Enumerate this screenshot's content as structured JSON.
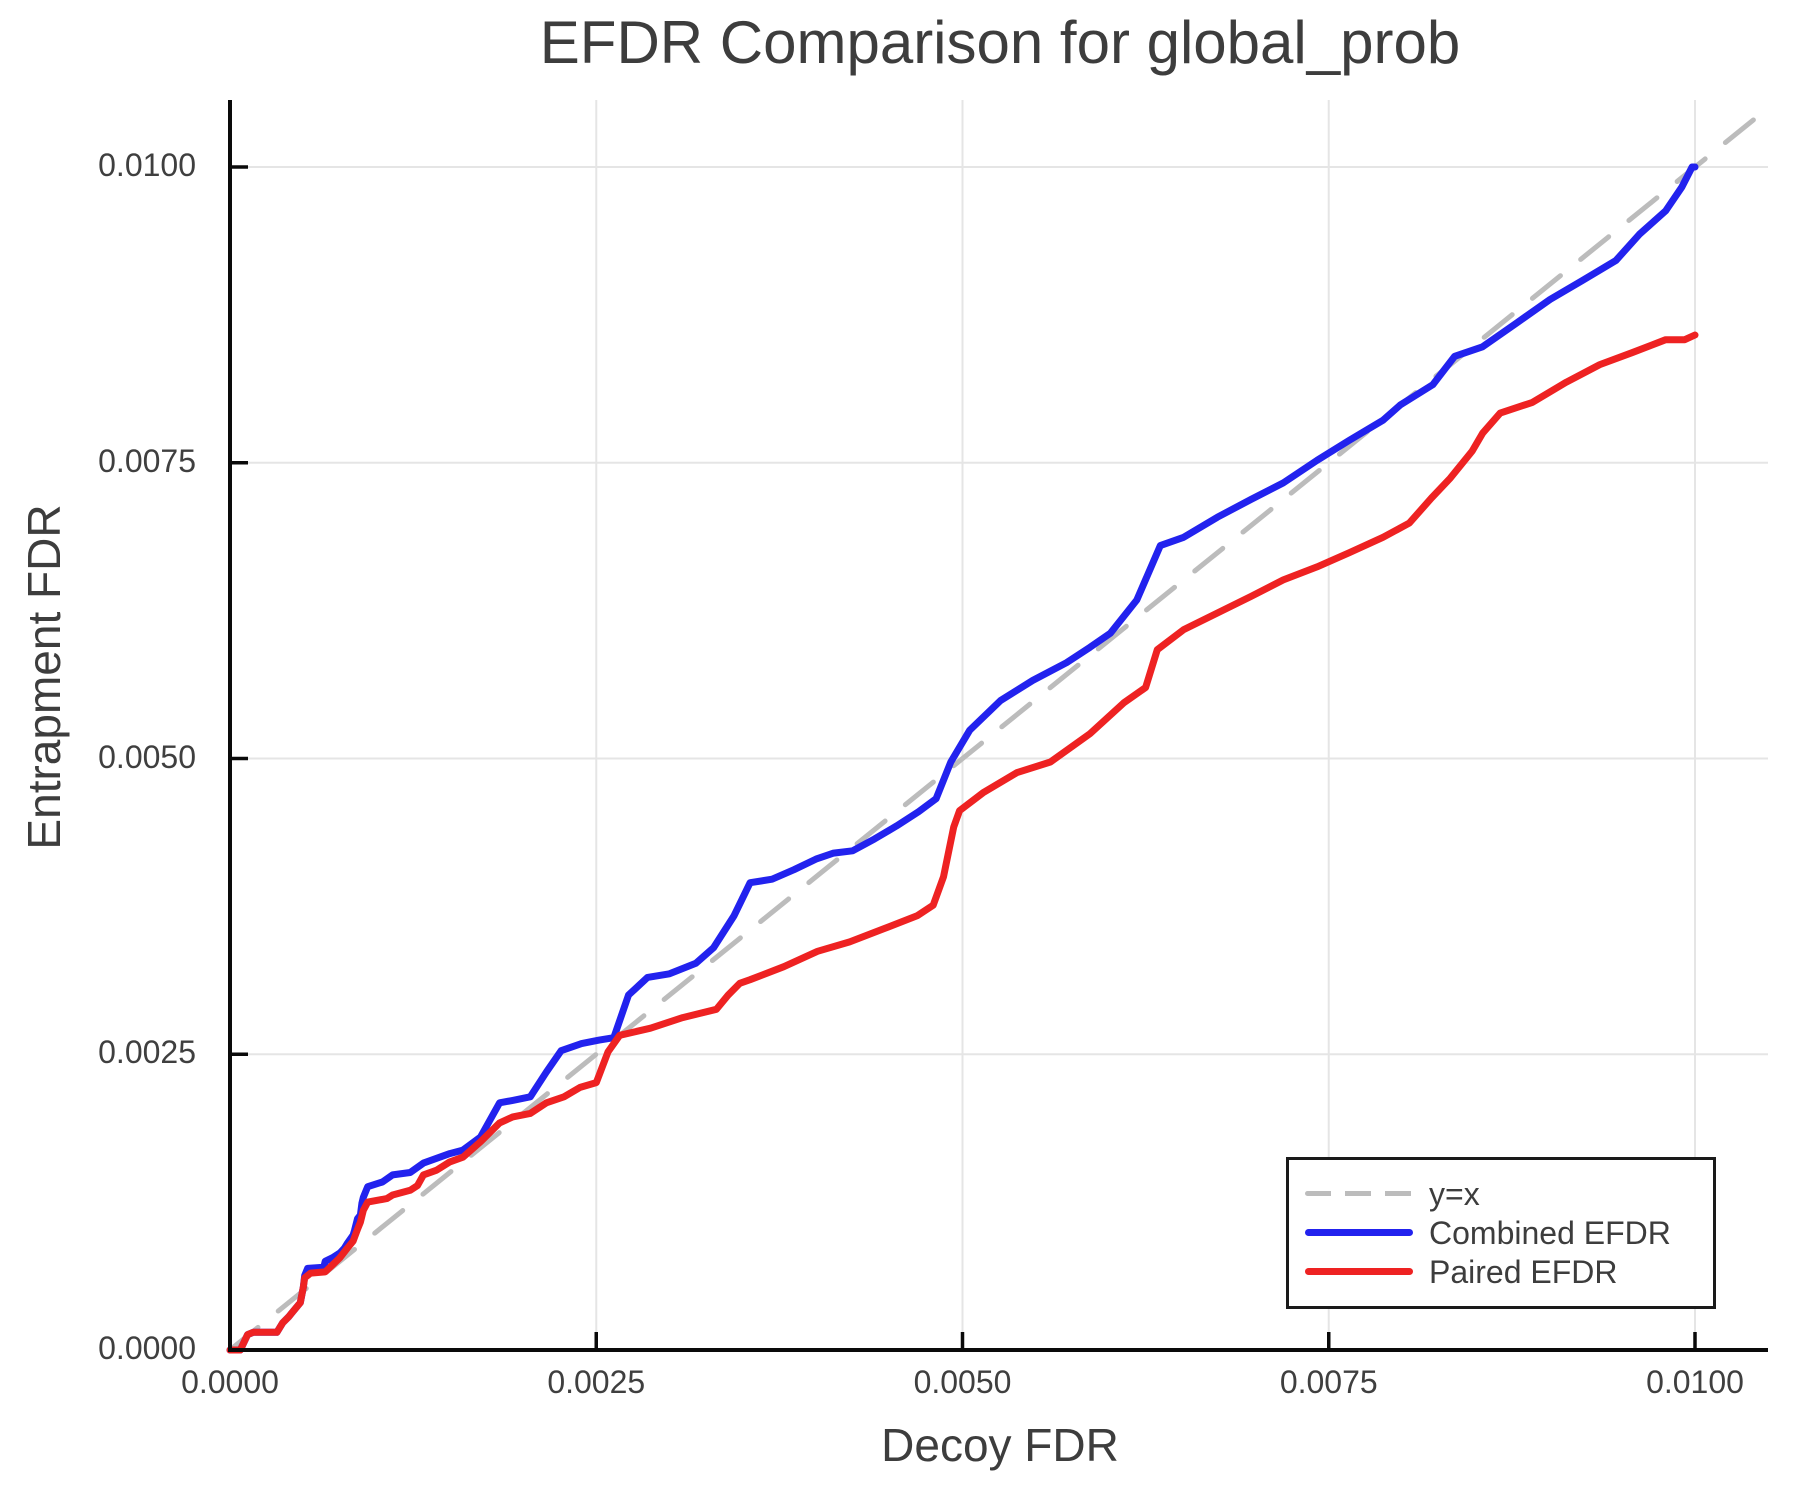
{
  "chart_data": {
    "type": "line",
    "title": "EFDR Comparison for global_prob",
    "xlabel": "Decoy FDR",
    "ylabel": "Entrapment FDR",
    "xlim": [
      0.0,
      0.0105
    ],
    "ylim": [
      0.0,
      0.01057
    ],
    "grid": true,
    "legend_position": "bottom-right",
    "x_tick_values": [
      0.0,
      0.0025,
      0.005,
      0.0075,
      0.01
    ],
    "x_tick_labels": [
      "0.0000",
      "0.0025",
      "0.0050",
      "0.0075",
      "0.0100"
    ],
    "y_tick_values": [
      0.0,
      0.0025,
      0.005,
      0.0075,
      0.01
    ],
    "y_tick_labels": [
      "0.0000",
      "0.0025",
      "0.0050",
      "0.0075",
      "0.0100"
    ],
    "series": [
      {
        "name": "y=x",
        "style": "dashed",
        "color": "#bcbcbc",
        "points": [
          [
            0.0,
            0.0
          ],
          [
            0.0105,
            0.0105
          ]
        ]
      },
      {
        "name": "Combined EFDR",
        "style": "solid",
        "color": "#2222ee",
        "points": [
          [
            0.0,
            0.0
          ],
          [
            7e-05,
            0.0
          ],
          [
            0.00012,
            0.00013
          ],
          [
            0.00016,
            0.00015
          ],
          [
            0.00032,
            0.00015
          ],
          [
            0.00036,
            0.00023
          ],
          [
            0.0004,
            0.00028
          ],
          [
            0.00042,
            0.00031
          ],
          [
            0.00048,
            0.0004
          ],
          [
            0.0005,
            0.00053
          ],
          [
            0.00051,
            0.00063
          ],
          [
            0.00053,
            0.00069
          ],
          [
            0.00064,
            0.0007
          ],
          [
            0.00065,
            0.00075
          ],
          [
            0.0007,
            0.00078
          ],
          [
            0.00075,
            0.00082
          ],
          [
            0.00078,
            0.00086
          ],
          [
            0.0008,
            0.0009
          ],
          [
            0.00084,
            0.00097
          ],
          [
            0.00085,
            0.00101
          ],
          [
            0.00087,
            0.00111
          ],
          [
            0.00089,
            0.00114
          ],
          [
            0.0009,
            0.00124
          ],
          [
            0.00091,
            0.00129
          ],
          [
            0.00093,
            0.00135
          ],
          [
            0.00094,
            0.00138
          ],
          [
            0.00104,
            0.00142
          ],
          [
            0.00111,
            0.00148
          ],
          [
            0.00123,
            0.0015
          ],
          [
            0.00132,
            0.00158
          ],
          [
            0.0015,
            0.00166
          ],
          [
            0.00159,
            0.00169
          ],
          [
            0.00171,
            0.0018
          ],
          [
            0.00184,
            0.00209
          ],
          [
            0.00193,
            0.00211
          ],
          [
            0.00205,
            0.00214
          ],
          [
            0.00216,
            0.00235
          ],
          [
            0.00226,
            0.00253
          ],
          [
            0.0024,
            0.00259
          ],
          [
            0.00252,
            0.00262
          ],
          [
            0.00262,
            0.00264
          ],
          [
            0.00272,
            0.003
          ],
          [
            0.00285,
            0.00315
          ],
          [
            0.003,
            0.00318
          ],
          [
            0.00318,
            0.00327
          ],
          [
            0.0033,
            0.0034
          ],
          [
            0.00344,
            0.00367
          ],
          [
            0.00355,
            0.00395
          ],
          [
            0.0037,
            0.00398
          ],
          [
            0.00385,
            0.00406
          ],
          [
            0.004,
            0.00415
          ],
          [
            0.00412,
            0.0042
          ],
          [
            0.00425,
            0.00422
          ],
          [
            0.0044,
            0.00432
          ],
          [
            0.00455,
            0.00443
          ],
          [
            0.0047,
            0.00455
          ],
          [
            0.00482,
            0.00466
          ],
          [
            0.00492,
            0.00497
          ],
          [
            0.00505,
            0.00524
          ],
          [
            0.00526,
            0.00549
          ],
          [
            0.00548,
            0.00566
          ],
          [
            0.00571,
            0.00581
          ],
          [
            0.00587,
            0.00594
          ],
          [
            0.00601,
            0.00606
          ],
          [
            0.00619,
            0.00634
          ],
          [
            0.00635,
            0.0068
          ],
          [
            0.00651,
            0.00687
          ],
          [
            0.00674,
            0.00704
          ],
          [
            0.00697,
            0.00719
          ],
          [
            0.00719,
            0.00733
          ],
          [
            0.00742,
            0.00752
          ],
          [
            0.00764,
            0.00769
          ],
          [
            0.00787,
            0.00786
          ],
          [
            0.00799,
            0.00799
          ],
          [
            0.00821,
            0.00816
          ],
          [
            0.00836,
            0.0084
          ],
          [
            0.00855,
            0.00848
          ],
          [
            0.00878,
            0.00868
          ],
          [
            0.00901,
            0.00888
          ],
          [
            0.00923,
            0.00904
          ],
          [
            0.00946,
            0.00921
          ],
          [
            0.00962,
            0.00943
          ],
          [
            0.0098,
            0.00963
          ],
          [
            0.00991,
            0.00983
          ],
          [
            0.00998,
            0.01
          ],
          [
            0.01,
            0.01
          ]
        ]
      },
      {
        "name": "Paired EFDR",
        "style": "solid",
        "color": "#ee2222",
        "points": [
          [
            0.0,
            0.0
          ],
          [
            7e-05,
            0.0
          ],
          [
            0.00012,
            0.00013
          ],
          [
            0.00016,
            0.00015
          ],
          [
            0.00032,
            0.00015
          ],
          [
            0.00036,
            0.00023
          ],
          [
            0.0004,
            0.00028
          ],
          [
            0.00042,
            0.00031
          ],
          [
            0.00048,
            0.0004
          ],
          [
            0.0005,
            0.00053
          ],
          [
            0.00051,
            0.00061
          ],
          [
            0.00055,
            0.00065
          ],
          [
            0.00065,
            0.00066
          ],
          [
            0.0007,
            0.00072
          ],
          [
            0.00075,
            0.00078
          ],
          [
            0.0008,
            0.00086
          ],
          [
            0.00084,
            0.00092
          ],
          [
            0.00087,
            0.00102
          ],
          [
            0.00089,
            0.00108
          ],
          [
            0.00091,
            0.00118
          ],
          [
            0.00094,
            0.00125
          ],
          [
            0.00107,
            0.00128
          ],
          [
            0.00111,
            0.00131
          ],
          [
            0.00123,
            0.00135
          ],
          [
            0.00128,
            0.00139
          ],
          [
            0.00132,
            0.00148
          ],
          [
            0.00141,
            0.00152
          ],
          [
            0.0015,
            0.00159
          ],
          [
            0.00159,
            0.00163
          ],
          [
            0.00171,
            0.00176
          ],
          [
            0.00184,
            0.00192
          ],
          [
            0.00193,
            0.00197
          ],
          [
            0.00205,
            0.002
          ],
          [
            0.00216,
            0.00209
          ],
          [
            0.00228,
            0.00214
          ],
          [
            0.00239,
            0.00222
          ],
          [
            0.0025,
            0.00226
          ],
          [
            0.00258,
            0.00252
          ],
          [
            0.00266,
            0.00266
          ],
          [
            0.00287,
            0.00272
          ],
          [
            0.00309,
            0.00281
          ],
          [
            0.00332,
            0.00288
          ],
          [
            0.0034,
            0.003
          ],
          [
            0.00348,
            0.0031
          ],
          [
            0.00355,
            0.00313
          ],
          [
            0.00378,
            0.00324
          ],
          [
            0.00401,
            0.00337
          ],
          [
            0.00423,
            0.00345
          ],
          [
            0.00446,
            0.00356
          ],
          [
            0.00469,
            0.00367
          ],
          [
            0.0048,
            0.00376
          ],
          [
            0.00487,
            0.004
          ],
          [
            0.00494,
            0.00442
          ],
          [
            0.00498,
            0.00456
          ],
          [
            0.00514,
            0.00471
          ],
          [
            0.00537,
            0.00488
          ],
          [
            0.0056,
            0.00497
          ],
          [
            0.00587,
            0.00521
          ],
          [
            0.0061,
            0.00547
          ],
          [
            0.00625,
            0.0056
          ],
          [
            0.00633,
            0.00592
          ],
          [
            0.00651,
            0.00609
          ],
          [
            0.00674,
            0.00623
          ],
          [
            0.00697,
            0.00637
          ],
          [
            0.00719,
            0.00651
          ],
          [
            0.00742,
            0.00662
          ],
          [
            0.00764,
            0.00674
          ],
          [
            0.00787,
            0.00687
          ],
          [
            0.00805,
            0.00699
          ],
          [
            0.0082,
            0.0072
          ],
          [
            0.00833,
            0.00737
          ],
          [
            0.00848,
            0.0076
          ],
          [
            0.00855,
            0.00775
          ],
          [
            0.00867,
            0.00792
          ],
          [
            0.00889,
            0.00801
          ],
          [
            0.00912,
            0.00818
          ],
          [
            0.00935,
            0.00833
          ],
          [
            0.00957,
            0.00843
          ],
          [
            0.0098,
            0.00854
          ],
          [
            0.00993,
            0.00854
          ],
          [
            0.01,
            0.00858
          ]
        ]
      }
    ]
  },
  "legend": {
    "items": [
      {
        "label": "y=x",
        "color": "#bcbcbc",
        "style": "dashed"
      },
      {
        "label": "Combined EFDR",
        "color": "#2222ee",
        "style": "solid"
      },
      {
        "label": "Paired EFDR",
        "color": "#ee2222",
        "style": "solid"
      }
    ]
  },
  "style_colors": {
    "gridline": "#e5e5e5",
    "axis": "#0a0a0a",
    "text": "#3d3d3d"
  }
}
